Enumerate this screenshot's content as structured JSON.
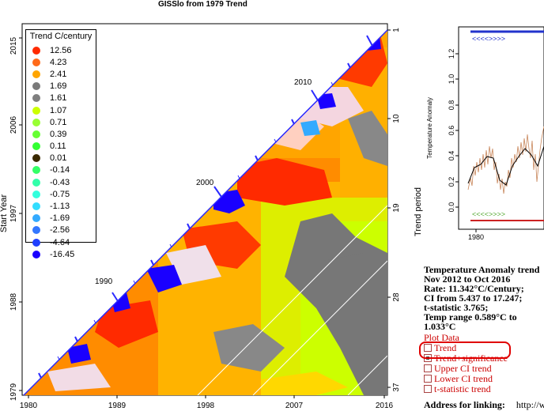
{
  "chart_title": "GISSlo  from 1979  Trend",
  "left_plot": {
    "ylabel": "Start Year",
    "right_label": "Trend period",
    "y_ticks": [
      "2015",
      "2006",
      "1997",
      "1988",
      "1979"
    ],
    "x_ticks": [
      "1980",
      "1989",
      "1998",
      "2007",
      "2016"
    ],
    "right_ticks": [
      "1",
      "10",
      "19",
      "28",
      "37"
    ],
    "diag_labels": [
      "2010",
      "2000",
      "1990"
    ]
  },
  "legend": {
    "title": "Trend C/century",
    "items": [
      {
        "value": "12.56",
        "color": "#ff2a00"
      },
      {
        "value": "4.23",
        "color": "#ff6a1a"
      },
      {
        "value": "2.41",
        "color": "#ffa500"
      },
      {
        "value": "1.69",
        "color": "#7a7a7a"
      },
      {
        "value": "1.61",
        "color": "#7f7f7f"
      },
      {
        "value": "1.07",
        "color": "#ccff00"
      },
      {
        "value": "0.71",
        "color": "#99ff33"
      },
      {
        "value": "0.39",
        "color": "#66ff33"
      },
      {
        "value": "0.11",
        "color": "#33ff33"
      },
      {
        "value": "0.01",
        "color": "#3a2a00"
      },
      {
        "value": "-0.14",
        "color": "#33ff66"
      },
      {
        "value": "-0.43",
        "color": "#33ffaa"
      },
      {
        "value": "-0.75",
        "color": "#33ffdd"
      },
      {
        "value": "-1.13",
        "color": "#33ddff"
      },
      {
        "value": "-1.69",
        "color": "#33aaff"
      },
      {
        "value": "-2.56",
        "color": "#3377ff"
      },
      {
        "value": "-4.64",
        "color": "#1f3fff"
      },
      {
        "value": "-16.45",
        "color": "#1a00ff"
      }
    ]
  },
  "right_plot": {
    "ylabel": "Temperature Anomaly",
    "y_ticks": [
      "1.2",
      "1.0",
      "0.8",
      "0.6",
      "0.4",
      "0.2",
      "0.0"
    ],
    "x_ticks": [
      "1980"
    ],
    "top_arrows": "<<<<>>>>",
    "bottom_arrows": "<<<<>>>>"
  },
  "info": {
    "heading": "Temperature Anomaly trend",
    "period": "Nov 2012 to Oct 2016",
    "rate": "Rate: 11.342°C/Century;",
    "ci": "CI from 5.437 to 17.247;",
    "tstat": "t-statistic 3.765;",
    "range": "Temp range 0.589°C to 1.033°C",
    "plot_data_label": "Plot Data",
    "options": [
      {
        "label": "Trend",
        "selected": false
      },
      {
        "label": "Trend+significance",
        "selected": true
      },
      {
        "label": "Upper CI trend",
        "selected": false
      },
      {
        "label": "Lower CI trend",
        "selected": false
      },
      {
        "label": "t-statistic trend",
        "selected": false
      }
    ]
  },
  "address": {
    "label": "Address for linking:",
    "url_start": "http://www"
  }
}
